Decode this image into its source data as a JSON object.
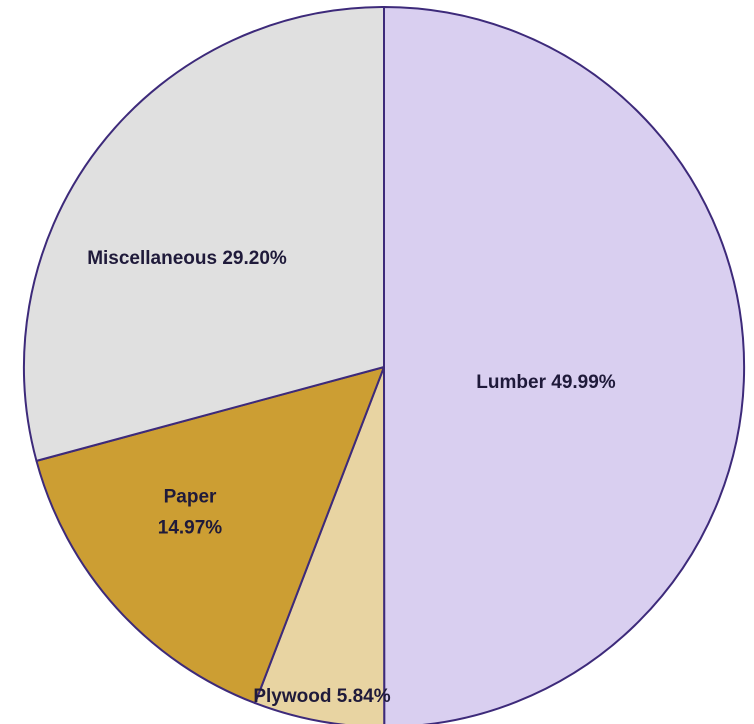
{
  "chart_data": {
    "type": "pie",
    "title": "",
    "start_angle_deg": 0,
    "direction": "clockwise",
    "slices": [
      {
        "label": "Lumber",
        "value": 49.99,
        "value_text": "49.99%",
        "color": "#d9cff0",
        "label_lines": [
          "Lumber 49.99%"
        ]
      },
      {
        "label": "Plywood",
        "value": 5.84,
        "value_text": "5.84%",
        "color": "#e8d4a2",
        "label_lines": [
          "Plywood 5.84%"
        ]
      },
      {
        "label": "Paper",
        "value": 14.97,
        "value_text": "14.97%",
        "color": "#cc9e33",
        "label_lines": [
          "Paper",
          "14.97%"
        ]
      },
      {
        "label": "Miscellaneous",
        "value": 29.2,
        "value_text": "29.20%",
        "color": "#e0e0e0",
        "label_lines": [
          "Miscellaneous 29.20%"
        ]
      }
    ],
    "border_color": "#3d2a7a",
    "legend": "none"
  }
}
